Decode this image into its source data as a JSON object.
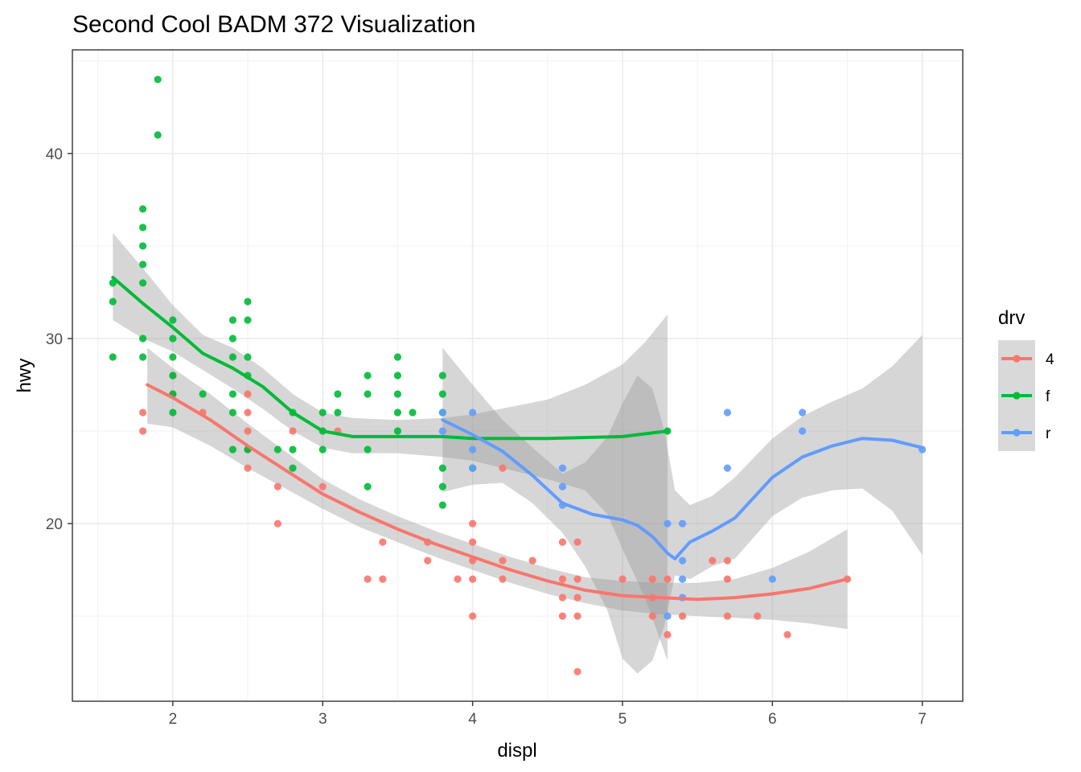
{
  "chart_data": {
    "type": "scatter",
    "title": "Second Cool BADM 372 Visualization",
    "xlabel": "displ",
    "ylabel": "hwy",
    "xlim": [
      1.33,
      7.27
    ],
    "ylim": [
      10.4,
      45.6
    ],
    "x_ticks": [
      "2",
      "3",
      "4",
      "5",
      "6",
      "7"
    ],
    "y_ticks": [
      "20",
      "30",
      "40"
    ],
    "grid": true,
    "legend": {
      "title": "drv",
      "position": "right"
    },
    "overlays": [
      "loess smooth line per group",
      "grey confidence band per group"
    ],
    "series": [
      {
        "name": "4",
        "color": "#F8766D",
        "points": [
          [
            1.8,
            26
          ],
          [
            1.8,
            25
          ],
          [
            2.0,
            28
          ],
          [
            2.0,
            27
          ],
          [
            2.2,
            26
          ],
          [
            2.5,
            27
          ],
          [
            2.5,
            26
          ],
          [
            2.5,
            25
          ],
          [
            2.5,
            24
          ],
          [
            2.5,
            23
          ],
          [
            2.7,
            22
          ],
          [
            2.7,
            20
          ],
          [
            2.8,
            25
          ],
          [
            3.0,
            22
          ],
          [
            3.1,
            25
          ],
          [
            3.3,
            17
          ],
          [
            3.4,
            17
          ],
          [
            3.4,
            19
          ],
          [
            3.7,
            19
          ],
          [
            3.7,
            18
          ],
          [
            3.9,
            17
          ],
          [
            4.0,
            20
          ],
          [
            4.0,
            19
          ],
          [
            4.0,
            18
          ],
          [
            4.0,
            17
          ],
          [
            4.0,
            15
          ],
          [
            4.2,
            18
          ],
          [
            4.2,
            17
          ],
          [
            4.2,
            23
          ],
          [
            4.4,
            18
          ],
          [
            4.6,
            19
          ],
          [
            4.6,
            17
          ],
          [
            4.6,
            16
          ],
          [
            4.6,
            15
          ],
          [
            4.7,
            19
          ],
          [
            4.7,
            17
          ],
          [
            4.7,
            16
          ],
          [
            4.7,
            15
          ],
          [
            4.7,
            12
          ],
          [
            5.0,
            17
          ],
          [
            5.2,
            17
          ],
          [
            5.2,
            16
          ],
          [
            5.2,
            15
          ],
          [
            5.3,
            14
          ],
          [
            5.3,
            17
          ],
          [
            5.4,
            15
          ],
          [
            5.6,
            18
          ],
          [
            5.7,
            18
          ],
          [
            5.7,
            17
          ],
          [
            5.7,
            15
          ],
          [
            5.9,
            15
          ],
          [
            6.1,
            14
          ],
          [
            6.5,
            17
          ]
        ],
        "smooth": [
          [
            1.83,
            27.5
          ],
          [
            2.0,
            26.8
          ],
          [
            2.25,
            25.6
          ],
          [
            2.5,
            24.2
          ],
          [
            2.75,
            22.9
          ],
          [
            3.0,
            21.6
          ],
          [
            3.25,
            20.6
          ],
          [
            3.5,
            19.7
          ],
          [
            3.75,
            18.9
          ],
          [
            4.0,
            18.2
          ],
          [
            4.25,
            17.5
          ],
          [
            4.5,
            16.9
          ],
          [
            4.75,
            16.4
          ],
          [
            5.0,
            16.1
          ],
          [
            5.25,
            16.0
          ],
          [
            5.5,
            15.9
          ],
          [
            5.75,
            16.0
          ],
          [
            6.0,
            16.2
          ],
          [
            6.25,
            16.5
          ],
          [
            6.5,
            17.0
          ]
        ],
        "band_upper": [
          [
            1.83,
            29.5
          ],
          [
            2.0,
            28.4
          ],
          [
            2.25,
            27.0
          ],
          [
            2.5,
            25.4
          ],
          [
            2.75,
            23.9
          ],
          [
            3.0,
            22.4
          ],
          [
            3.25,
            21.3
          ],
          [
            3.5,
            20.4
          ],
          [
            3.75,
            19.6
          ],
          [
            4.0,
            18.9
          ],
          [
            4.25,
            18.2
          ],
          [
            4.5,
            17.6
          ],
          [
            4.75,
            17.1
          ],
          [
            5.0,
            16.9
          ],
          [
            5.25,
            16.8
          ],
          [
            5.5,
            16.8
          ],
          [
            5.75,
            17.0
          ],
          [
            6.0,
            17.6
          ],
          [
            6.25,
            18.5
          ],
          [
            6.5,
            19.7
          ]
        ],
        "band_lower": [
          [
            1.83,
            25.4
          ],
          [
            2.0,
            25.2
          ],
          [
            2.25,
            24.2
          ],
          [
            2.5,
            23.0
          ],
          [
            2.75,
            21.9
          ],
          [
            3.0,
            20.8
          ],
          [
            3.25,
            19.8
          ],
          [
            3.5,
            19.0
          ],
          [
            3.75,
            18.2
          ],
          [
            4.0,
            17.5
          ],
          [
            4.25,
            16.8
          ],
          [
            4.5,
            16.2
          ],
          [
            4.75,
            15.7
          ],
          [
            5.0,
            15.3
          ],
          [
            5.25,
            15.1
          ],
          [
            5.5,
            15.0
          ],
          [
            5.75,
            14.9
          ],
          [
            6.0,
            14.8
          ],
          [
            6.25,
            14.6
          ],
          [
            6.5,
            14.3
          ]
        ]
      },
      {
        "name": "f",
        "color": "#00BA38",
        "points": [
          [
            1.6,
            33
          ],
          [
            1.6,
            32
          ],
          [
            1.6,
            29
          ],
          [
            1.8,
            37
          ],
          [
            1.8,
            36
          ],
          [
            1.8,
            35
          ],
          [
            1.8,
            34
          ],
          [
            1.8,
            33
          ],
          [
            1.8,
            30
          ],
          [
            1.8,
            29
          ],
          [
            1.9,
            44
          ],
          [
            1.9,
            41
          ],
          [
            2.0,
            31
          ],
          [
            2.0,
            30
          ],
          [
            2.0,
            29
          ],
          [
            2.0,
            28
          ],
          [
            2.0,
            27
          ],
          [
            2.0,
            26
          ],
          [
            2.2,
            27
          ],
          [
            2.4,
            31
          ],
          [
            2.4,
            30
          ],
          [
            2.4,
            29
          ],
          [
            2.4,
            27
          ],
          [
            2.4,
            26
          ],
          [
            2.4,
            24
          ],
          [
            2.5,
            32
          ],
          [
            2.5,
            31
          ],
          [
            2.5,
            29
          ],
          [
            2.5,
            28
          ],
          [
            2.5,
            24
          ],
          [
            2.7,
            24
          ],
          [
            2.8,
            26
          ],
          [
            2.8,
            24
          ],
          [
            2.8,
            23
          ],
          [
            3.0,
            26
          ],
          [
            3.0,
            25
          ],
          [
            3.0,
            24
          ],
          [
            3.1,
            27
          ],
          [
            3.1,
            26
          ],
          [
            3.3,
            28
          ],
          [
            3.3,
            27
          ],
          [
            3.3,
            24
          ],
          [
            3.3,
            22
          ],
          [
            3.5,
            29
          ],
          [
            3.5,
            28
          ],
          [
            3.5,
            27
          ],
          [
            3.5,
            26
          ],
          [
            3.5,
            25
          ],
          [
            3.6,
            26
          ],
          [
            3.8,
            28
          ],
          [
            3.8,
            27
          ],
          [
            3.8,
            26
          ],
          [
            3.8,
            23
          ],
          [
            3.8,
            22
          ],
          [
            3.8,
            21
          ],
          [
            4.0,
            23
          ],
          [
            5.3,
            25
          ]
        ],
        "smooth": [
          [
            1.6,
            33.3
          ],
          [
            1.8,
            31.9
          ],
          [
            2.0,
            30.6
          ],
          [
            2.2,
            29.2
          ],
          [
            2.4,
            28.4
          ],
          [
            2.6,
            27.4
          ],
          [
            2.8,
            26.0
          ],
          [
            3.0,
            25.0
          ],
          [
            3.2,
            24.7
          ],
          [
            3.5,
            24.7
          ],
          [
            3.8,
            24.7
          ],
          [
            4.0,
            24.6
          ],
          [
            4.5,
            24.6
          ],
          [
            5.0,
            24.7
          ],
          [
            5.3,
            25.0
          ]
        ],
        "band_upper": [
          [
            1.6,
            35.7
          ],
          [
            1.8,
            33.8
          ],
          [
            2.0,
            31.8
          ],
          [
            2.2,
            30.2
          ],
          [
            2.4,
            29.5
          ],
          [
            2.6,
            28.4
          ],
          [
            2.8,
            27.0
          ],
          [
            3.0,
            26.0
          ],
          [
            3.2,
            25.7
          ],
          [
            3.5,
            25.6
          ],
          [
            3.8,
            25.7
          ],
          [
            4.0,
            25.9
          ],
          [
            4.5,
            26.7
          ],
          [
            4.75,
            27.5
          ],
          [
            5.0,
            28.6
          ],
          [
            5.15,
            29.8
          ],
          [
            5.3,
            31.3
          ]
        ],
        "band_lower": [
          [
            1.6,
            31.0
          ],
          [
            1.8,
            30.0
          ],
          [
            2.0,
            29.3
          ],
          [
            2.2,
            28.3
          ],
          [
            2.4,
            27.3
          ],
          [
            2.6,
            26.2
          ],
          [
            2.8,
            25.0
          ],
          [
            3.0,
            24.1
          ],
          [
            3.2,
            23.8
          ],
          [
            3.5,
            23.8
          ],
          [
            3.8,
            23.6
          ],
          [
            4.0,
            23.4
          ],
          [
            4.5,
            22.4
          ],
          [
            4.75,
            21.8
          ],
          [
            4.9,
            20.5
          ],
          [
            5.0,
            18.6
          ],
          [
            5.15,
            16.0
          ],
          [
            5.3,
            12.6
          ]
        ]
      },
      {
        "name": "r",
        "color": "#619CFF",
        "points": [
          [
            3.8,
            26
          ],
          [
            3.8,
            25
          ],
          [
            4.0,
            26
          ],
          [
            4.0,
            24
          ],
          [
            4.0,
            23
          ],
          [
            4.6,
            23
          ],
          [
            4.6,
            22
          ],
          [
            4.6,
            21
          ],
          [
            5.3,
            20
          ],
          [
            5.3,
            15
          ],
          [
            5.4,
            20
          ],
          [
            5.4,
            18
          ],
          [
            5.4,
            17
          ],
          [
            5.4,
            16
          ],
          [
            5.7,
            26
          ],
          [
            5.7,
            23
          ],
          [
            6.0,
            17
          ],
          [
            6.2,
            26
          ],
          [
            6.2,
            25
          ],
          [
            7.0,
            24
          ]
        ],
        "smooth": [
          [
            3.8,
            25.6
          ],
          [
            4.0,
            24.8
          ],
          [
            4.2,
            23.9
          ],
          [
            4.4,
            22.6
          ],
          [
            4.6,
            21.1
          ],
          [
            4.8,
            20.5
          ],
          [
            5.0,
            20.2
          ],
          [
            5.1,
            19.9
          ],
          [
            5.2,
            19.3
          ],
          [
            5.3,
            18.4
          ],
          [
            5.35,
            18.1
          ],
          [
            5.45,
            19.0
          ],
          [
            5.6,
            19.6
          ],
          [
            5.75,
            20.3
          ],
          [
            6.0,
            22.5
          ],
          [
            6.2,
            23.6
          ],
          [
            6.4,
            24.2
          ],
          [
            6.6,
            24.6
          ],
          [
            6.8,
            24.5
          ],
          [
            7.0,
            24.1
          ]
        ],
        "band_upper": [
          [
            3.8,
            29.5
          ],
          [
            4.0,
            27.5
          ],
          [
            4.2,
            25.6
          ],
          [
            4.4,
            24.1
          ],
          [
            4.6,
            22.7
          ],
          [
            4.75,
            23.3
          ],
          [
            4.9,
            24.7
          ],
          [
            5.0,
            26.5
          ],
          [
            5.1,
            28.0
          ],
          [
            5.2,
            27.3
          ],
          [
            5.28,
            25.0
          ],
          [
            5.35,
            21.8
          ],
          [
            5.45,
            21.0
          ],
          [
            5.6,
            21.5
          ],
          [
            5.75,
            22.5
          ],
          [
            6.0,
            24.6
          ],
          [
            6.2,
            25.8
          ],
          [
            6.4,
            26.6
          ],
          [
            6.6,
            27.3
          ],
          [
            6.8,
            28.5
          ],
          [
            7.0,
            30.2
          ]
        ],
        "band_lower": [
          [
            3.8,
            21.7
          ],
          [
            4.0,
            22.1
          ],
          [
            4.2,
            22.2
          ],
          [
            4.4,
            21.1
          ],
          [
            4.6,
            19.5
          ],
          [
            4.75,
            17.7
          ],
          [
            4.9,
            15.3
          ],
          [
            5.0,
            12.7
          ],
          [
            5.1,
            11.9
          ],
          [
            5.2,
            12.6
          ],
          [
            5.28,
            14.5
          ],
          [
            5.35,
            17.2
          ],
          [
            5.45,
            17.0
          ],
          [
            5.6,
            17.7
          ],
          [
            5.75,
            18.1
          ],
          [
            6.0,
            20.4
          ],
          [
            6.2,
            21.4
          ],
          [
            6.4,
            21.8
          ],
          [
            6.6,
            21.9
          ],
          [
            6.8,
            20.7
          ],
          [
            7.0,
            18.3
          ]
        ]
      }
    ]
  }
}
